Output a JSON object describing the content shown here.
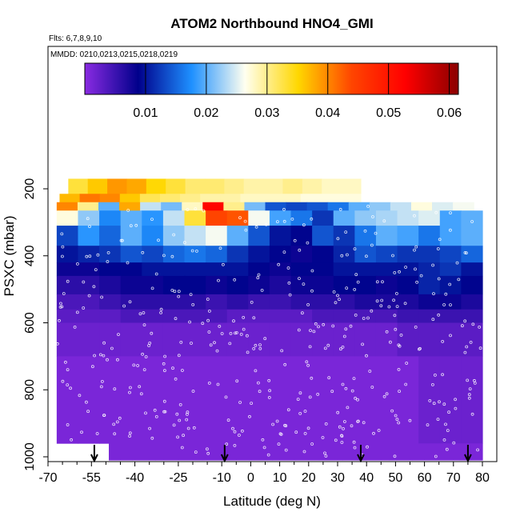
{
  "chart_data": {
    "type": "heatmap",
    "title": "ATOM2 Northbound HNO4_GMI",
    "flights_label": "Flts: 6,7,8,9,10",
    "mmdd_label": "MMDD: 0210,0213,0215,0218,0219",
    "xlabel": "Latitude (deg N)",
    "ylabel": "PSXC (mbar)",
    "xlim": [
      -70,
      82
    ],
    "ylim": [
      1010,
      0
    ],
    "x_ticks": [
      -70,
      -55,
      -40,
      -25,
      -10,
      0,
      10,
      20,
      30,
      40,
      50,
      60,
      70,
      80
    ],
    "x_tick_labels": [
      "-70",
      "-55",
      "-40",
      "-25",
      "-10",
      "0",
      "10",
      "20",
      "30",
      "40",
      "50",
      "60",
      "70",
      "80"
    ],
    "x_minor_ticks": [
      -65,
      -60,
      -50,
      -45,
      -35,
      -30,
      -20,
      -15,
      -5,
      5,
      15,
      25,
      35,
      45,
      55,
      65,
      75
    ],
    "y_ticks": [
      200,
      400,
      600,
      800,
      1000
    ],
    "y_tick_labels": [
      "200",
      "400",
      "600",
      "800",
      "1000"
    ],
    "colorbar": {
      "min": 0.0,
      "max": 0.0615,
      "ticks": [
        0.01,
        0.02,
        0.03,
        0.04,
        0.05,
        0.06
      ],
      "tick_labels": [
        "0.01",
        "0.02",
        "0.03",
        "0.04",
        "0.05",
        "0.06"
      ],
      "colors": [
        "#8a2be2",
        "#00008b",
        "#1e90ff",
        "#fffff0",
        "#ffd700",
        "#ff4500",
        "#ff0000",
        "#8b0000"
      ]
    },
    "arrows_lat": [
      -54,
      -9,
      38,
      75
    ],
    "rows": [
      {
        "p": [
          170,
          215
        ],
        "lat": [
          -63,
          38
        ],
        "v": [
          0.033,
          0.036,
          0.039,
          0.038,
          0.035,
          0.033,
          0.031,
          0.031,
          0.03,
          0.029,
          0.029,
          0.03,
          0.029,
          0.028,
          0.028
        ]
      },
      {
        "p": [
          215,
          240
        ],
        "lat": [
          -66,
          38
        ],
        "v": [
          0.037,
          0.041,
          0.04,
          0.036,
          0.032,
          0.031,
          0.03,
          0.029,
          0.029,
          0.028,
          0.028,
          0.028,
          0.027,
          0.027,
          0.027
        ]
      },
      {
        "p": [
          240,
          265
        ],
        "lat": [
          -67,
          77
        ],
        "v": [
          0.04,
          0.03,
          0.02,
          0.038,
          0.024,
          0.021,
          0.028,
          0.052,
          0.03,
          0.021,
          0.014,
          0.013,
          0.014,
          0.016,
          0.02,
          0.022,
          0.024,
          0.027,
          0.025,
          0.026
        ]
      },
      {
        "p": [
          265,
          310
        ],
        "lat": [
          -67,
          80
        ],
        "v": [
          0.027,
          0.022,
          0.017,
          0.02,
          0.018,
          0.024,
          0.033,
          0.044,
          0.043,
          0.026,
          0.019,
          0.016,
          0.012,
          0.02,
          0.022,
          0.023,
          0.024,
          0.025,
          0.019,
          0.02
        ]
      },
      {
        "p": [
          310,
          370
        ],
        "lat": [
          -67,
          80
        ],
        "v": [
          0.013,
          0.018,
          0.015,
          0.02,
          0.017,
          0.022,
          0.024,
          0.026,
          0.02,
          0.014,
          0.01,
          0.009,
          0.014,
          0.012,
          0.016,
          0.02,
          0.019,
          0.016,
          0.019,
          0.02
        ]
      },
      {
        "p": [
          370,
          420
        ],
        "lat": [
          -67,
          80
        ],
        "v": [
          0.01,
          0.011,
          0.012,
          0.014,
          0.013,
          0.015,
          0.016,
          0.015,
          0.012,
          0.01,
          0.009,
          0.008,
          0.009,
          0.011,
          0.014,
          0.013,
          0.012,
          0.012,
          0.013,
          0.015
        ]
      },
      {
        "p": [
          420,
          460
        ],
        "lat": [
          -67,
          80
        ],
        "v": [
          0.008,
          0.008,
          0.009,
          0.009,
          0.01,
          0.01,
          0.01,
          0.01,
          0.01,
          0.009,
          0.008,
          0.009,
          0.009,
          0.01,
          0.01,
          0.01,
          0.01,
          0.011,
          0.012,
          0.01
        ]
      },
      {
        "p": [
          460,
          515
        ],
        "lat": [
          -67,
          80
        ],
        "v": [
          0.006,
          0.006,
          0.007,
          0.008,
          0.008,
          0.009,
          0.009,
          0.008,
          0.009,
          0.008,
          0.007,
          0.008,
          0.008,
          0.009,
          0.009,
          0.008,
          0.009,
          0.011,
          0.01,
          0.009
        ]
      },
      {
        "p": [
          515,
          560
        ],
        "lat": [
          -67,
          80
        ],
        "v": [
          0.004,
          0.004,
          0.005,
          0.006,
          0.006,
          0.006,
          0.006,
          0.005,
          0.006,
          0.005,
          0.005,
          0.006,
          0.006,
          0.006,
          0.007,
          0.007,
          0.007,
          0.008,
          0.008,
          0.007
        ]
      },
      {
        "p": [
          560,
          600
        ],
        "lat": [
          -67,
          80
        ],
        "v": [
          0.003,
          0.003,
          0.003,
          0.004,
          0.004,
          0.004,
          0.004,
          0.004,
          0.003,
          0.003,
          0.003,
          0.003,
          0.004,
          0.004,
          0.004,
          0.004,
          0.005,
          0.005,
          0.005,
          0.005
        ]
      },
      {
        "p": [
          600,
          700
        ],
        "lat": [
          -67,
          80
        ],
        "v": [
          0.002,
          0.002,
          0.002,
          0.002,
          0.002,
          0.002,
          0.002,
          0.002,
          0.002,
          0.002,
          0.002,
          0.002,
          0.002,
          0.002,
          0.002,
          0.002,
          0.003,
          0.003,
          0.003,
          0.003
        ]
      },
      {
        "p": [
          700,
          960
        ],
        "lat": [
          -67,
          80
        ],
        "v": [
          0.001,
          0.001,
          0.001,
          0.001,
          0.001,
          0.001,
          0.001,
          0.001,
          0.001,
          0.001,
          0.001,
          0.001,
          0.001,
          0.001,
          0.001,
          0.001,
          0.001,
          0.002,
          0.002,
          0.002
        ]
      },
      {
        "p": [
          960,
          1010
        ],
        "lat": [
          -49,
          80
        ],
        "v": [
          0.001,
          0.001,
          0.001,
          0.001,
          0.001,
          0.001,
          0.001,
          0.001,
          0.001,
          0.001,
          0.001,
          0.001,
          0.001,
          0.001,
          0.001,
          0.001
        ]
      }
    ]
  }
}
